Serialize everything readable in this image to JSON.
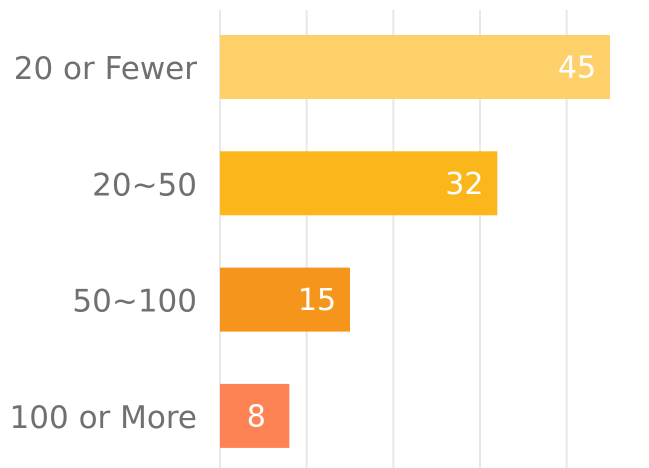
{
  "chart_data": {
    "type": "bar",
    "orientation": "horizontal",
    "categories": [
      "20 or Fewer",
      "20~50",
      "50~100",
      "100 or More"
    ],
    "values": [
      45,
      32,
      15,
      8
    ],
    "colors": [
      "#fdd069",
      "#fbb61c",
      "#f5951c",
      "#fd8355"
    ],
    "xlim": [
      0,
      49.5
    ],
    "xticks": [
      0,
      10,
      20,
      30,
      40
    ],
    "grid": true
  }
}
